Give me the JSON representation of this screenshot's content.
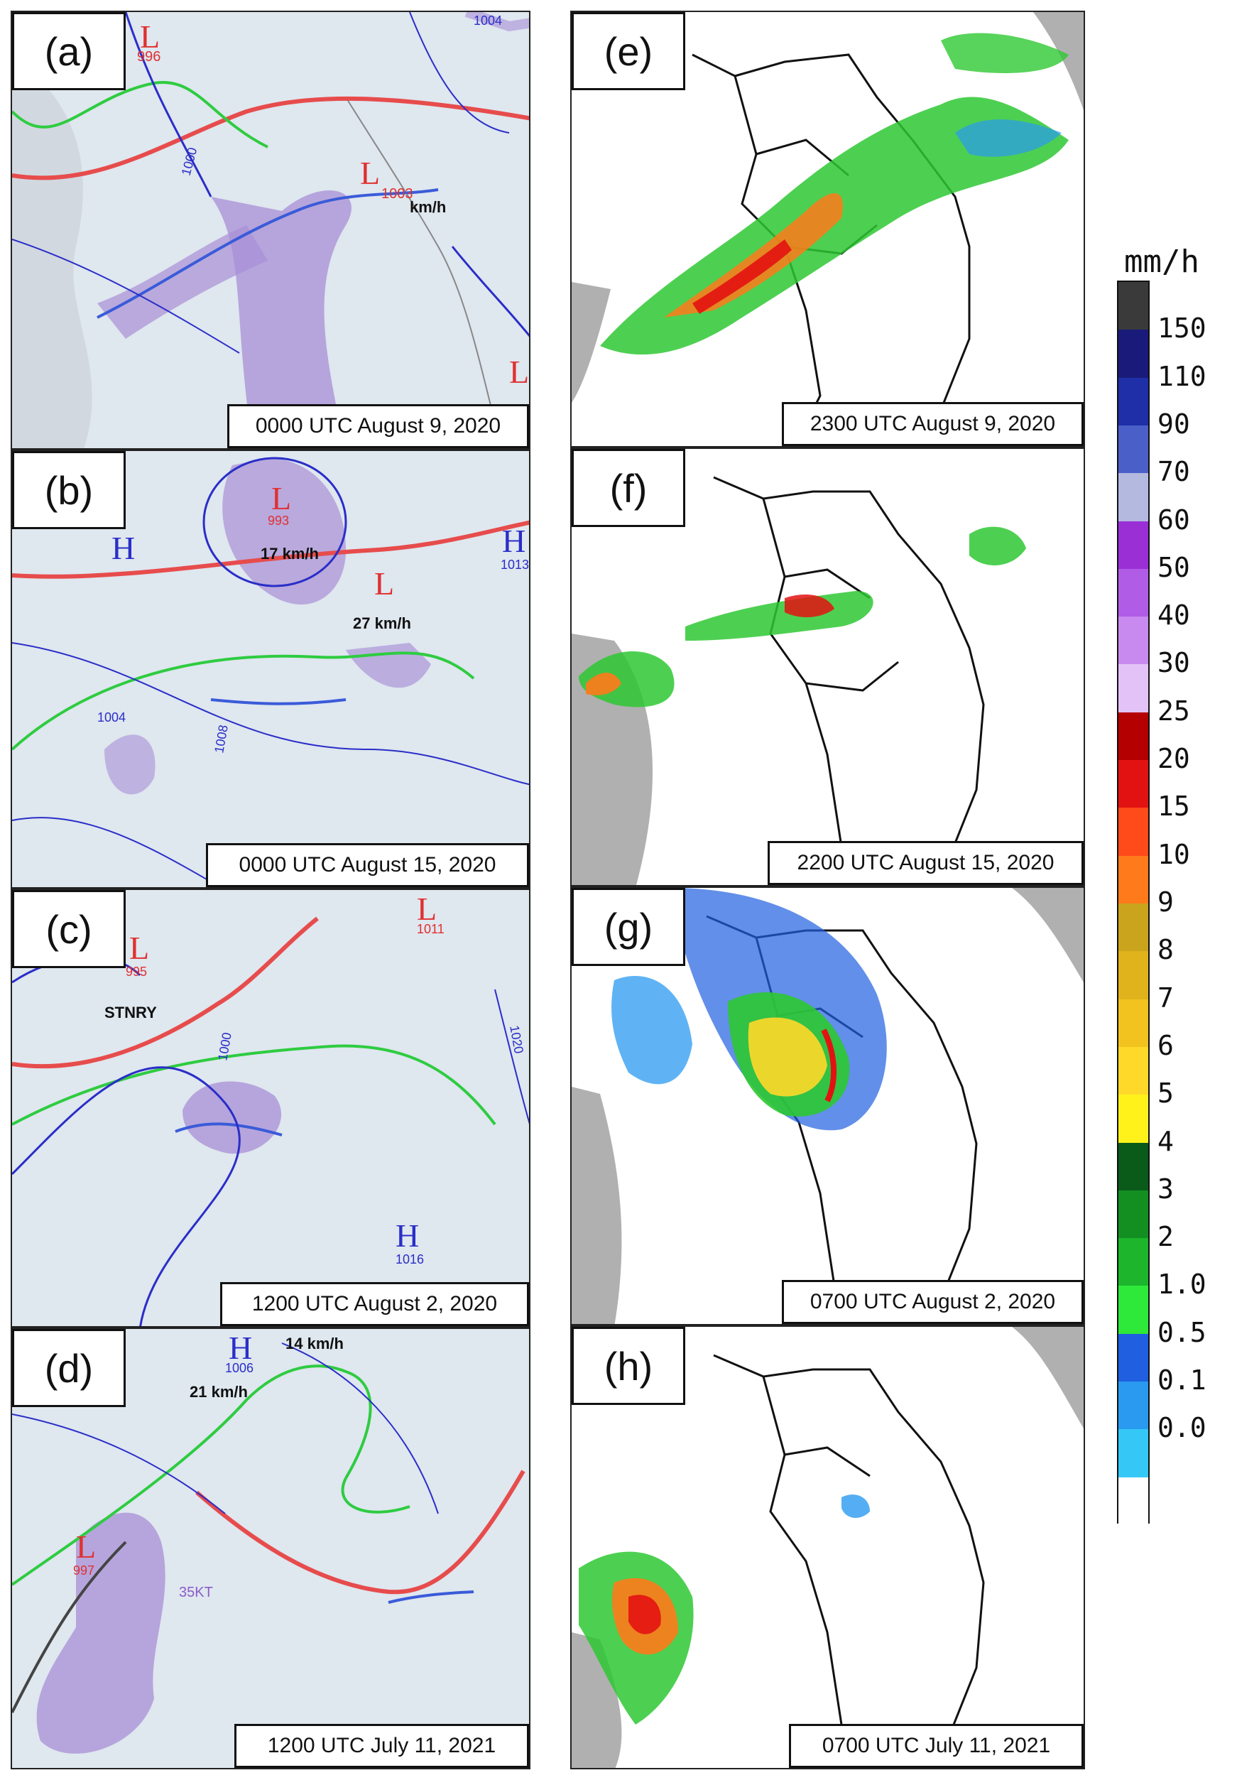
{
  "panels": [
    {
      "id": "a",
      "letter": "(a)",
      "caption": "0000 UTC August 9, 2020",
      "kind": "weather"
    },
    {
      "id": "b",
      "letter": "(b)",
      "caption": "0000 UTC August 15, 2020",
      "kind": "weather"
    },
    {
      "id": "c",
      "letter": "(c)",
      "caption": "1200 UTC August 2, 2020",
      "kind": "weather"
    },
    {
      "id": "d",
      "letter": "(d)",
      "caption": "1200 UTC July 11, 2021",
      "kind": "weather"
    },
    {
      "id": "e",
      "letter": "(e)",
      "caption": "2300 UTC August 9, 2020",
      "kind": "radar"
    },
    {
      "id": "f",
      "letter": "(f)",
      "caption": "2200 UTC August 15, 2020",
      "kind": "radar"
    },
    {
      "id": "g",
      "letter": "(g)",
      "caption": "0700 UTC August 2, 2020",
      "kind": "radar"
    },
    {
      "id": "h",
      "letter": "(h)",
      "caption": "0700 UTC July 11, 2021",
      "kind": "radar"
    }
  ],
  "map_labels": {
    "a": {
      "low1": "L",
      "low1_p": "996",
      "low2": "L",
      "low2_p": "1003",
      "low3": "L",
      "speed": "km/h",
      "iso1": "1000",
      "iso2": "1004"
    },
    "b": {
      "high1": "H",
      "high1_p": "1013",
      "high2": "H",
      "low1": "L",
      "low1_p": "993",
      "low2": "L",
      "speed1": "17 km/h",
      "speed2": "27 km/h",
      "iso1": "1004",
      "iso2": "1008"
    },
    "c": {
      "low1": "L",
      "low1_p": "995",
      "low2": "L",
      "low2_p": "1011",
      "high1": "H",
      "high1_p": "1016",
      "stnry": "STNRY",
      "iso1": "1000",
      "iso2": "1020"
    },
    "d": {
      "high1": "H",
      "high1_p": "1006",
      "low1": "L",
      "low1_p": "997",
      "speed1": "14 km/h",
      "speed2": "21 km/h",
      "wind": "35KT"
    }
  },
  "colorbar": {
    "unit": "mm/h",
    "levels": [
      {
        "label": "150",
        "color": "#1a1a7a"
      },
      {
        "label": "110",
        "color": "#1f2fa8"
      },
      {
        "label": "90",
        "color": "#4a5fc8"
      },
      {
        "label": "70",
        "color": "#b4b9e0"
      },
      {
        "label": "60",
        "color": "#9a2fd6"
      },
      {
        "label": "50",
        "color": "#b05ce6"
      },
      {
        "label": "40",
        "color": "#c98aef"
      },
      {
        "label": "30",
        "color": "#e3c2f7"
      },
      {
        "label": "25",
        "color": "#b40000"
      },
      {
        "label": "20",
        "color": "#e31212"
      },
      {
        "label": "15",
        "color": "#ff4a1a"
      },
      {
        "label": "10",
        "color": "#ff7a1a"
      },
      {
        "label": "9",
        "color": "#c9a41c"
      },
      {
        "label": "8",
        "color": "#e0b21c"
      },
      {
        "label": "7",
        "color": "#f2c21e"
      },
      {
        "label": "6",
        "color": "#ffd92a"
      },
      {
        "label": "5",
        "color": "#fff21a"
      },
      {
        "label": "4",
        "color": "#0a5a1a"
      },
      {
        "label": "3",
        "color": "#138f22"
      },
      {
        "label": "2",
        "color": "#1cb52c"
      },
      {
        "label": "1.0",
        "color": "#2ee83a"
      },
      {
        "label": "0.5",
        "color": "#1f5fe0"
      },
      {
        "label": "0.1",
        "color": "#2a9af0"
      },
      {
        "label": "0.0",
        "color": "#35c8f7"
      }
    ],
    "top_color": "#3a3a3a",
    "bottom_color": "#ffffff"
  }
}
